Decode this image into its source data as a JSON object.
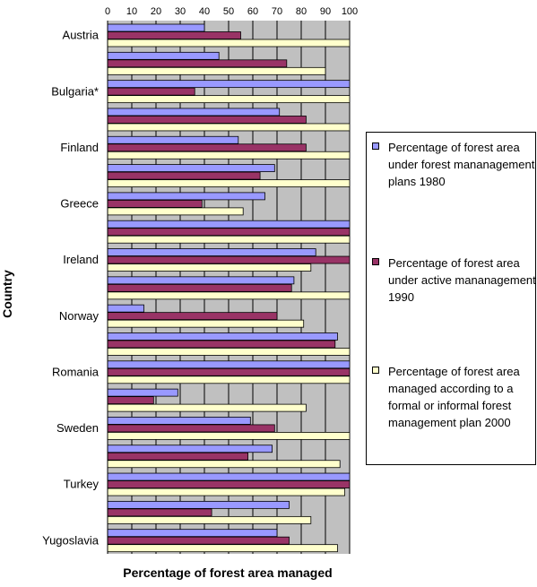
{
  "chart_data": {
    "type": "bar",
    "orientation": "horizontal",
    "xlabel": "Percentage of forest area managed",
    "ylabel": "Country",
    "xlim": [
      0,
      100
    ],
    "xticks": [
      "0",
      "10",
      "20",
      "30",
      "40",
      "50",
      "60",
      "70",
      "80",
      "90",
      "100"
    ],
    "grid": true,
    "legend_position": "right",
    "rows": 19,
    "category_labels": [
      {
        "row": 0,
        "label": "Austria"
      },
      {
        "row": 2,
        "label": "Bulgaria*"
      },
      {
        "row": 4,
        "label": "Finland"
      },
      {
        "row": 6,
        "label": "Greece"
      },
      {
        "row": 8,
        "label": "Ireland"
      },
      {
        "row": 10,
        "label": "Norway"
      },
      {
        "row": 12,
        "label": "Romania"
      },
      {
        "row": 14,
        "label": "Sweden"
      },
      {
        "row": 16,
        "label": "Turkey"
      },
      {
        "row": 18,
        "label": "Yugoslavia"
      }
    ],
    "series": [
      {
        "name": "Percentage of forest area under forest mananagement plans 1980",
        "color": "#9999ff",
        "values": [
          40,
          46,
          100,
          71,
          54,
          69,
          65,
          100,
          86,
          77,
          15,
          95,
          100,
          29,
          59,
          68,
          100,
          75,
          70
        ]
      },
      {
        "name": "Percentage of forest area under active mananagement 1990",
        "color": "#993366",
        "values": [
          55,
          74,
          36,
          82,
          82,
          63,
          39,
          100,
          100,
          76,
          70,
          94,
          100,
          19,
          69,
          58,
          100,
          43,
          75
        ]
      },
      {
        "name": "Percentage of forest area managed according to a formal or informal forest management plan 2000",
        "color": "#ffffcc",
        "values": [
          100,
          90,
          100,
          100,
          100,
          100,
          56,
          100,
          84,
          100,
          81,
          100,
          100,
          82,
          100,
          96,
          98,
          84,
          95
        ]
      }
    ]
  },
  "legend": {
    "items": [
      {
        "text": "Percentage of forest area under forest mananagement plans 1980",
        "color": "#9999ff"
      },
      {
        "text": "Percentage of forest area under active mananagement 1990",
        "color": "#993366"
      },
      {
        "text": "Percentage of forest area managed according to a formal or informal forest management plan 2000",
        "color": "#ffffcc"
      }
    ]
  }
}
